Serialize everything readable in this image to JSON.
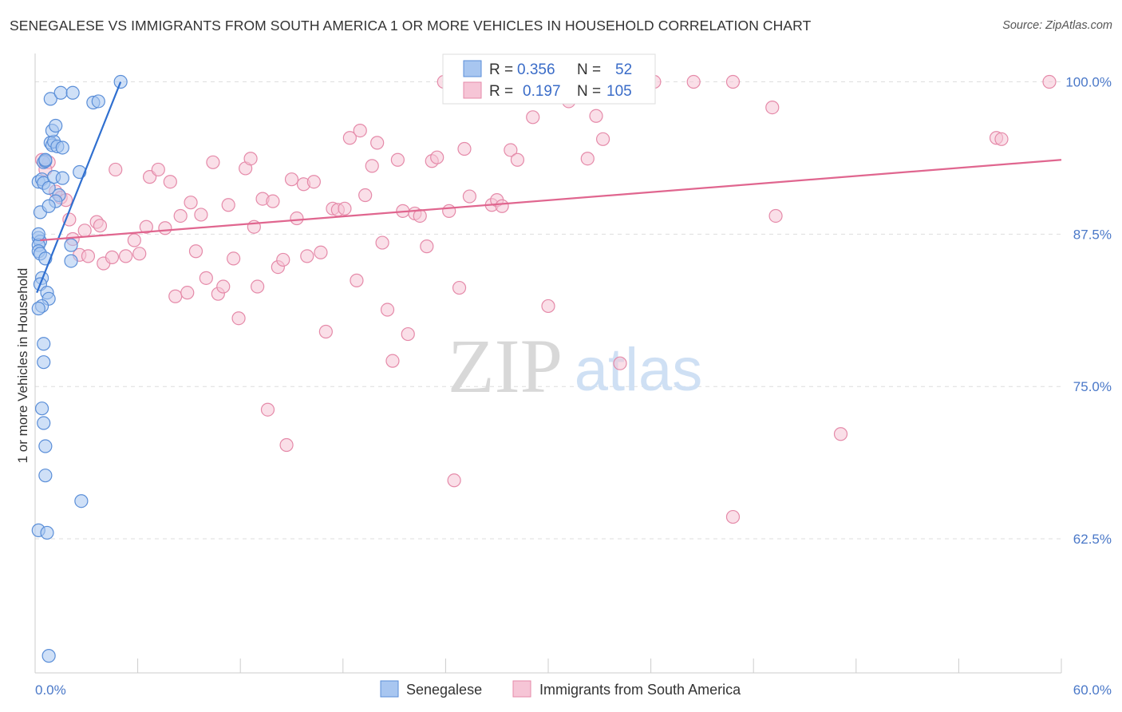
{
  "title": "SENEGALESE VS IMMIGRANTS FROM SOUTH AMERICA 1 OR MORE VEHICLES IN HOUSEHOLD CORRELATION CHART",
  "source": "Source: ZipAtlas.com",
  "watermark": {
    "zip": "ZIP",
    "atlas": "atlas"
  },
  "colors": {
    "blue_fill": "#a8c6f0",
    "blue_stroke": "#5a8ed8",
    "blue_line": "#2f6fd0",
    "pink_fill": "#f6c5d6",
    "pink_stroke": "#e58aa9",
    "pink_line": "#e0668f",
    "grid": "#dddddd",
    "tick_label": "#4a78c8"
  },
  "chart_data": {
    "type": "scatter",
    "title": "SENEGALESE VS IMMIGRANTS FROM SOUTH AMERICA 1 OR MORE VEHICLES IN HOUSEHOLD CORRELATION CHART",
    "xlabel": "",
    "ylabel": "1 or more Vehicles in Household",
    "xlim": [
      0,
      60
    ],
    "ylim": [
      51.5,
      102
    ],
    "x_tick_labels": {
      "left": "0.0%",
      "right": "60.0%"
    },
    "y_ticks": [
      100,
      87.5,
      75,
      62.5
    ],
    "y_tick_labels": [
      "100.0%",
      "87.5%",
      "75.0%",
      "62.5%"
    ],
    "legend": {
      "rows": [
        {
          "r_label": "R =",
          "r_value": "0.356",
          "n_label": "N =",
          "n_value": "52"
        },
        {
          "r_label": "R =",
          "r_value": "0.197",
          "n_label": "N =",
          "n_value": "105"
        }
      ]
    },
    "series": [
      {
        "name": "Senegalese",
        "color_key": "blue",
        "trend": {
          "x0": 0.1,
          "y0": 82.7,
          "x1": 5.0,
          "y1": 100.0
        },
        "points": [
          [
            0.2,
            91.8
          ],
          [
            0.3,
            89.3
          ],
          [
            0.4,
            92.0
          ],
          [
            0.5,
            93.4
          ],
          [
            0.6,
            93.5
          ],
          [
            0.5,
            91.7
          ],
          [
            0.8,
            91.3
          ],
          [
            0.9,
            95.0
          ],
          [
            1.0,
            94.8
          ],
          [
            1.1,
            95.1
          ],
          [
            1.3,
            94.7
          ],
          [
            1.6,
            94.6
          ],
          [
            1.0,
            96.0
          ],
          [
            1.2,
            96.4
          ],
          [
            0.9,
            98.6
          ],
          [
            1.5,
            99.1
          ],
          [
            2.2,
            99.1
          ],
          [
            3.4,
            98.3
          ],
          [
            3.7,
            98.4
          ],
          [
            5.0,
            100.0
          ],
          [
            0.6,
            93.6
          ],
          [
            1.1,
            92.2
          ],
          [
            1.4,
            90.7
          ],
          [
            1.2,
            90.2
          ],
          [
            0.8,
            89.8
          ],
          [
            1.6,
            92.1
          ],
          [
            2.6,
            92.6
          ],
          [
            0.2,
            87.2
          ],
          [
            0.3,
            86.9
          ],
          [
            0.2,
            86.6
          ],
          [
            0.2,
            86.1
          ],
          [
            0.3,
            85.9
          ],
          [
            0.6,
            85.5
          ],
          [
            2.1,
            86.6
          ],
          [
            2.1,
            85.3
          ],
          [
            0.4,
            83.9
          ],
          [
            0.3,
            83.4
          ],
          [
            0.7,
            82.7
          ],
          [
            0.8,
            82.2
          ],
          [
            0.4,
            81.6
          ],
          [
            0.2,
            81.4
          ],
          [
            0.5,
            78.5
          ],
          [
            0.5,
            77.0
          ],
          [
            0.4,
            73.2
          ],
          [
            0.5,
            72.0
          ],
          [
            0.6,
            70.1
          ],
          [
            0.6,
            67.7
          ],
          [
            2.7,
            65.6
          ],
          [
            0.2,
            63.2
          ],
          [
            0.7,
            63.0
          ],
          [
            0.8,
            52.9
          ],
          [
            0.2,
            87.5
          ]
        ]
      },
      {
        "name": "Immigrants from South America",
        "color_key": "pink",
        "trend": {
          "x0": 0.3,
          "y0": 87.0,
          "x1": 60.0,
          "y1": 93.6
        },
        "points": [
          [
            0.4,
            93.6
          ],
          [
            0.8,
            93.4
          ],
          [
            0.6,
            92.8
          ],
          [
            1.2,
            91.0
          ],
          [
            1.5,
            90.5
          ],
          [
            1.8,
            90.3
          ],
          [
            2.0,
            88.7
          ],
          [
            2.2,
            87.1
          ],
          [
            2.6,
            85.8
          ],
          [
            2.9,
            87.8
          ],
          [
            3.1,
            85.7
          ],
          [
            3.6,
            88.5
          ],
          [
            3.8,
            88.2
          ],
          [
            4.0,
            85.1
          ],
          [
            4.5,
            85.6
          ],
          [
            4.7,
            92.8
          ],
          [
            5.3,
            85.7
          ],
          [
            5.8,
            87.0
          ],
          [
            6.1,
            85.9
          ],
          [
            6.5,
            88.1
          ],
          [
            6.7,
            92.2
          ],
          [
            7.2,
            92.8
          ],
          [
            7.6,
            88.0
          ],
          [
            7.9,
            91.8
          ],
          [
            8.2,
            82.4
          ],
          [
            8.5,
            89.0
          ],
          [
            8.9,
            82.7
          ],
          [
            9.1,
            90.1
          ],
          [
            9.4,
            86.1
          ],
          [
            9.7,
            89.1
          ],
          [
            10.0,
            83.9
          ],
          [
            10.4,
            93.4
          ],
          [
            10.7,
            82.6
          ],
          [
            11.0,
            83.2
          ],
          [
            11.3,
            89.9
          ],
          [
            11.6,
            85.5
          ],
          [
            11.9,
            80.6
          ],
          [
            12.3,
            92.9
          ],
          [
            12.6,
            93.7
          ],
          [
            12.8,
            88.1
          ],
          [
            13.0,
            83.2
          ],
          [
            13.3,
            90.4
          ],
          [
            13.6,
            73.1
          ],
          [
            13.9,
            90.2
          ],
          [
            14.2,
            84.8
          ],
          [
            14.5,
            85.4
          ],
          [
            14.7,
            70.2
          ],
          [
            15.0,
            92.0
          ],
          [
            15.3,
            88.8
          ],
          [
            15.7,
            91.6
          ],
          [
            15.9,
            85.7
          ],
          [
            16.3,
            91.8
          ],
          [
            16.7,
            86.0
          ],
          [
            17.0,
            79.5
          ],
          [
            17.4,
            89.6
          ],
          [
            17.7,
            89.5
          ],
          [
            18.1,
            89.6
          ],
          [
            18.4,
            95.4
          ],
          [
            18.8,
            83.7
          ],
          [
            19.0,
            96.0
          ],
          [
            19.3,
            90.7
          ],
          [
            19.7,
            93.1
          ],
          [
            20.0,
            95.0
          ],
          [
            20.3,
            86.8
          ],
          [
            20.6,
            81.3
          ],
          [
            20.9,
            77.1
          ],
          [
            21.2,
            93.6
          ],
          [
            21.5,
            89.4
          ],
          [
            21.8,
            79.3
          ],
          [
            22.2,
            89.2
          ],
          [
            22.5,
            89.0
          ],
          [
            22.9,
            86.5
          ],
          [
            23.2,
            93.5
          ],
          [
            23.5,
            93.8
          ],
          [
            23.9,
            100.0
          ],
          [
            24.2,
            89.4
          ],
          [
            24.5,
            67.3
          ],
          [
            24.8,
            83.1
          ],
          [
            25.1,
            94.5
          ],
          [
            25.4,
            90.6
          ],
          [
            26.7,
            89.9
          ],
          [
            27.0,
            90.3
          ],
          [
            27.3,
            89.8
          ],
          [
            27.8,
            94.4
          ],
          [
            28.2,
            93.6
          ],
          [
            29.1,
            97.1
          ],
          [
            29.6,
            100.0
          ],
          [
            30.0,
            81.6
          ],
          [
            31.2,
            98.4
          ],
          [
            32.3,
            93.7
          ],
          [
            32.8,
            97.2
          ],
          [
            33.2,
            95.3
          ],
          [
            34.2,
            76.9
          ],
          [
            36.2,
            100.0
          ],
          [
            38.5,
            100.0
          ],
          [
            40.8,
            100.0
          ],
          [
            40.8,
            64.3
          ],
          [
            43.1,
            97.9
          ],
          [
            43.3,
            89.0
          ],
          [
            47.1,
            71.1
          ],
          [
            56.2,
            95.4
          ],
          [
            56.5,
            95.3
          ],
          [
            59.3,
            100.0
          ],
          [
            26.5,
            99.2
          ]
        ]
      }
    ]
  },
  "bottom_legend": [
    {
      "label": "Senegalese",
      "color_key": "blue"
    },
    {
      "label": "Immigrants from South America",
      "color_key": "pink"
    }
  ]
}
